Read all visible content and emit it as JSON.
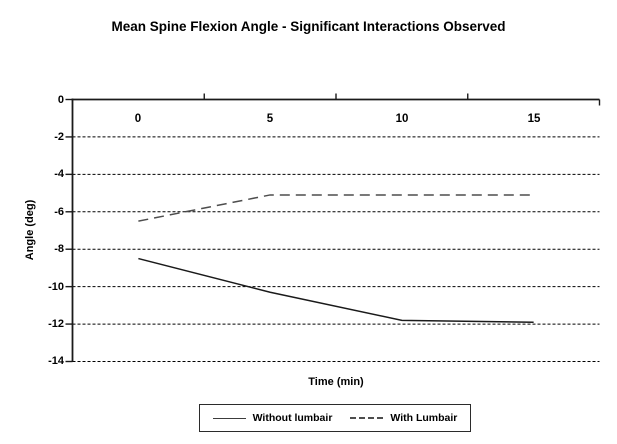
{
  "chart_data": {
    "type": "line",
    "title": "Mean Spine Flexion Angle - Significant Interactions Observed",
    "xlabel": "Time (min)",
    "ylabel": "Angle (deg)",
    "categories": [
      0,
      5,
      10,
      15
    ],
    "xticks": [
      0,
      5,
      10,
      15
    ],
    "yticks": [
      0,
      -2,
      -4,
      -6,
      -8,
      -10,
      -12,
      -14
    ],
    "ylim": [
      -14,
      0
    ],
    "grid": "horizontal-dashed",
    "legend_position": "bottom",
    "series": [
      {
        "name": "Without lumbair",
        "line_style": "solid",
        "color": "#1a1a1a",
        "values": [
          -8.5,
          -10.3,
          -11.8,
          -11.9
        ]
      },
      {
        "name": "With Lumbair",
        "line_style": "dashed",
        "color": "#4d4d4d",
        "values": [
          -6.5,
          -5.1,
          -5.1,
          -5.1
        ]
      }
    ],
    "colors": {
      "axis": "#1a1a1a",
      "gridline": "#000000",
      "background": "#ffffff",
      "text": "#000000"
    }
  }
}
